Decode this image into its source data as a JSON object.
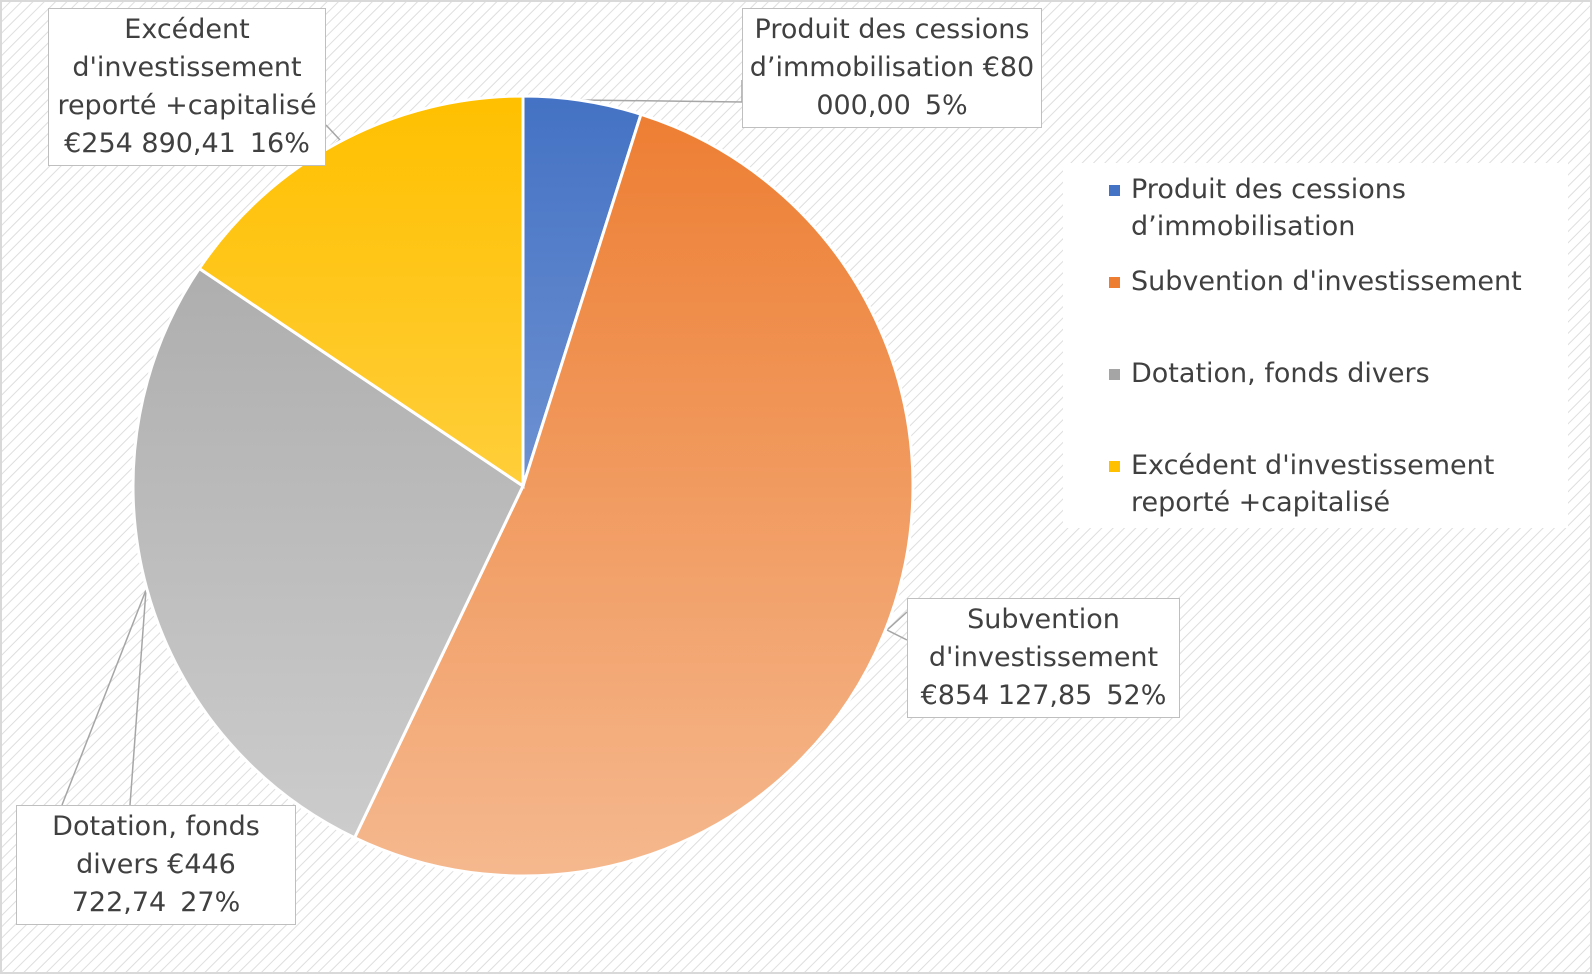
{
  "chart_data": {
    "type": "pie",
    "categories": [
      "Produit des cessions d’immobilisation",
      "Subvention d'investissement",
      "Dotation, fonds divers",
      "Excédent d'investissement reporté +capitalisé"
    ],
    "values": [
      80000,
      854127.85,
      446722.74,
      254890.41
    ],
    "value_labels": [
      "€80 000,00",
      "€854 127,85",
      "€446 722,74",
      "€254 890,41"
    ],
    "percentages": [
      5,
      52,
      27,
      16
    ],
    "percentage_labels": [
      "5%",
      "52%",
      "27%",
      "16%"
    ],
    "colors": [
      "#4472c4",
      "#ed7d31",
      "#a5a5a5",
      "#ffc000"
    ],
    "legend": "right"
  }
}
